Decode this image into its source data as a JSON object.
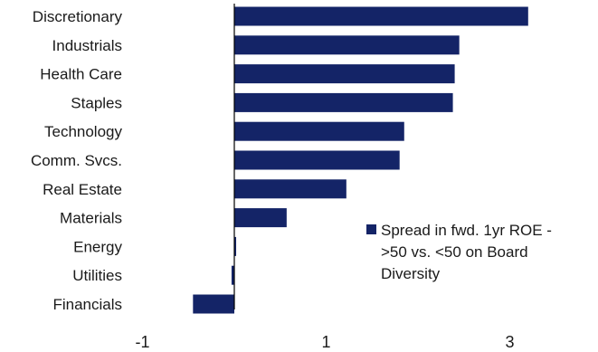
{
  "chart_data": {
    "type": "bar",
    "orientation": "horizontal",
    "categories": [
      "Discretionary",
      "Industrials",
      "Health Care",
      "Staples",
      "Technology",
      "Comm. Svcs.",
      "Real Estate",
      "Materials",
      "Energy",
      "Utilities",
      "Financials"
    ],
    "series": [
      {
        "name": "Spread in fwd. 1yr ROE - >50 vs. <50 on Board Diversity",
        "values": [
          3.2,
          2.45,
          2.4,
          2.38,
          1.85,
          1.8,
          1.22,
          0.57,
          0.02,
          -0.03,
          -0.45
        ],
        "color": "#142467"
      }
    ],
    "xlim": [
      -1,
      3.8
    ],
    "xticks": [
      -1,
      1,
      3
    ],
    "xtick_labels": [
      "-1",
      "1",
      "3"
    ],
    "legend": {
      "position": "bottom-right",
      "lines": [
        "Spread in fwd. 1yr ROE -",
        ">50 vs. <50 on Board",
        "Diversity"
      ]
    },
    "grid": false
  }
}
